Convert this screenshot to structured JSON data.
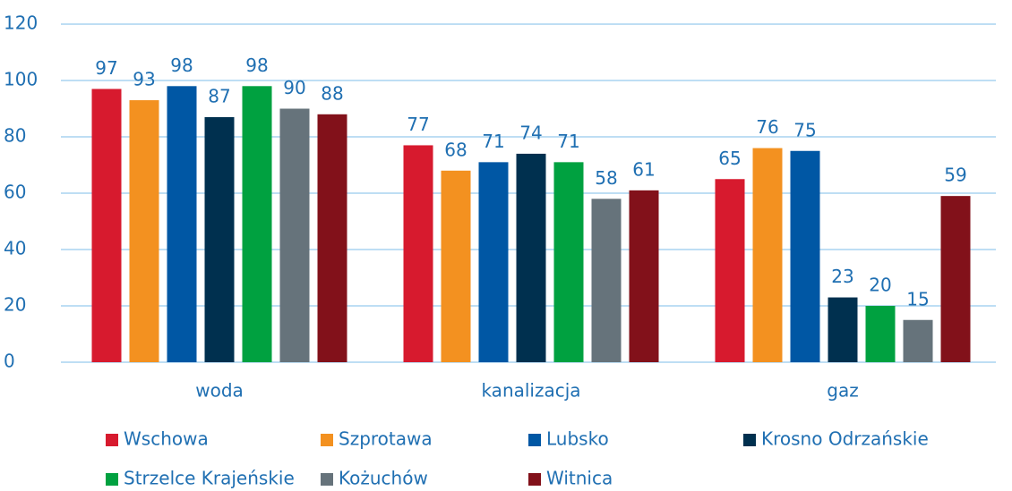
{
  "chart_data": {
    "type": "bar",
    "categories": [
      "woda",
      "kanalizacja",
      "gaz"
    ],
    "series": [
      {
        "name": "Wschowa",
        "color": "#d71a2e",
        "values": [
          97,
          77,
          65
        ]
      },
      {
        "name": "Szprotawa",
        "color": "#f39120",
        "values": [
          93,
          68,
          76
        ]
      },
      {
        "name": "Lubsko",
        "color": "#0057a4",
        "values": [
          98,
          71,
          75
        ]
      },
      {
        "name": "Krosno Odrzańskie",
        "color": "#00304f",
        "values": [
          87,
          74,
          23
        ]
      },
      {
        "name": "Strzelce Krajeńskie",
        "color": "#00a140",
        "values": [
          98,
          71,
          20
        ]
      },
      {
        "name": "Kożuchów",
        "color": "#66737b",
        "values": [
          90,
          58,
          15
        ]
      },
      {
        "name": "Witnica",
        "color": "#82111a",
        "values": [
          88,
          61,
          59
        ]
      }
    ],
    "ylim": [
      0,
      120
    ],
    "yticks": [
      0,
      20,
      40,
      60,
      80,
      100,
      120
    ],
    "grid": true,
    "legend": "bottom"
  }
}
